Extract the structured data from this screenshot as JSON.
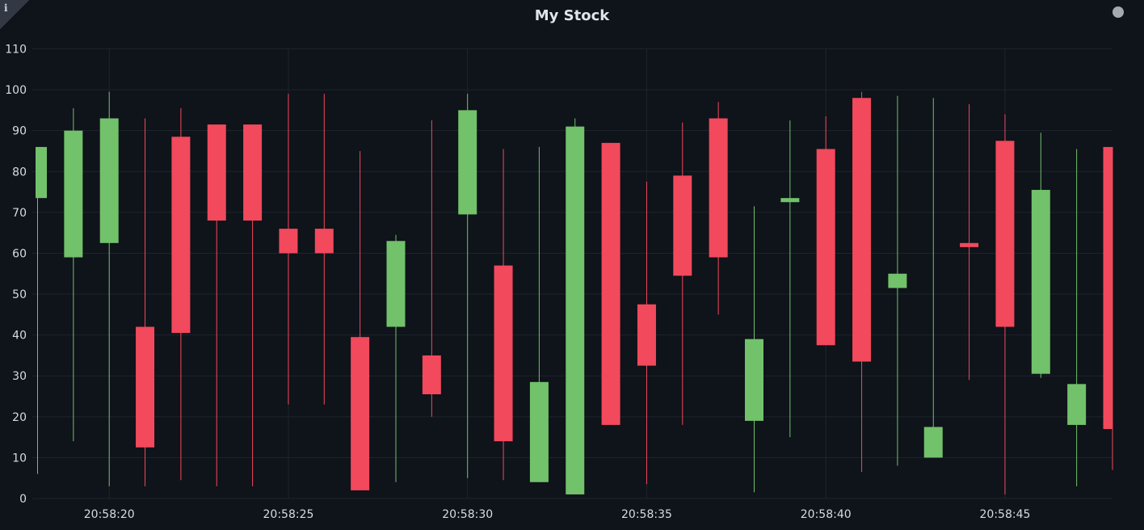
{
  "chart_data": {
    "type": "candlestick",
    "title": "My Stock",
    "ylim": [
      0,
      110
    ],
    "y_ticks": [
      0,
      10,
      20,
      30,
      40,
      50,
      60,
      70,
      80,
      90,
      100,
      110
    ],
    "x_ticks": [
      "20:58:20",
      "20:58:25",
      "20:58:30",
      "20:58:35",
      "20:58:40",
      "20:58:45"
    ],
    "grid": true,
    "colors": {
      "up": "#72c16b",
      "down": "#f2495c",
      "grid": "#1f242c",
      "background": "#0f131a"
    },
    "candles": [
      {
        "time": "20:58:18",
        "open": 73.5,
        "high": 86,
        "low": 6,
        "close": 86
      },
      {
        "time": "20:58:19",
        "open": 59,
        "high": 95.5,
        "low": 14,
        "close": 90
      },
      {
        "time": "20:58:20",
        "open": 62.5,
        "high": 99.5,
        "low": 3,
        "close": 93
      },
      {
        "time": "20:58:21",
        "open": 42,
        "high": 93,
        "low": 3,
        "close": 12.5
      },
      {
        "time": "20:58:22",
        "open": 88.5,
        "high": 95.5,
        "low": 4.5,
        "close": 40.5
      },
      {
        "time": "20:58:23",
        "open": 91.5,
        "high": 91.5,
        "low": 3,
        "close": 68
      },
      {
        "time": "20:58:24",
        "open": 91.5,
        "high": 91.5,
        "low": 3,
        "close": 68
      },
      {
        "time": "20:58:25",
        "open": 66,
        "high": 99,
        "low": 23,
        "close": 60
      },
      {
        "time": "20:58:26",
        "open": 66,
        "high": 99,
        "low": 23,
        "close": 60
      },
      {
        "time": "20:58:27",
        "open": 39.5,
        "high": 85,
        "low": 2,
        "close": 2
      },
      {
        "time": "20:58:28",
        "open": 42,
        "high": 64.5,
        "low": 4,
        "close": 63
      },
      {
        "time": "20:58:29",
        "open": 35,
        "high": 92.5,
        "low": 20,
        "close": 25.5
      },
      {
        "time": "20:58:30",
        "open": 69.5,
        "high": 99,
        "low": 5,
        "close": 95
      },
      {
        "time": "20:58:31",
        "open": 57,
        "high": 85.5,
        "low": 4.5,
        "close": 14
      },
      {
        "time": "20:58:32",
        "open": 4,
        "high": 86,
        "low": 4,
        "close": 28.5
      },
      {
        "time": "20:58:33",
        "open": 1,
        "high": 93,
        "low": 1,
        "close": 91
      },
      {
        "time": "20:58:34",
        "open": 87,
        "high": 87,
        "low": 18,
        "close": 18
      },
      {
        "time": "20:58:35",
        "open": 47.5,
        "high": 77.5,
        "low": 3.5,
        "close": 32.5
      },
      {
        "time": "20:58:36",
        "open": 79,
        "high": 92,
        "low": 18,
        "close": 54.5
      },
      {
        "time": "20:58:37",
        "open": 93,
        "high": 97,
        "low": 45,
        "close": 59
      },
      {
        "time": "20:58:38",
        "open": 19,
        "high": 71.5,
        "low": 1.5,
        "close": 39
      },
      {
        "time": "20:58:39",
        "open": 72.5,
        "high": 92.5,
        "low": 15,
        "close": 73.5
      },
      {
        "time": "20:58:40",
        "open": 85.5,
        "high": 93.5,
        "low": 38,
        "close": 37.5
      },
      {
        "time": "20:58:41",
        "open": 98,
        "high": 99.5,
        "low": 6.5,
        "close": 33.5
      },
      {
        "time": "20:58:42",
        "open": 51.5,
        "high": 98.5,
        "low": 8,
        "close": 55
      },
      {
        "time": "20:58:43",
        "open": 10,
        "high": 98,
        "low": 10,
        "close": 17.5
      },
      {
        "time": "20:58:44",
        "open": 62.5,
        "high": 96.5,
        "low": 29,
        "close": 61.5
      },
      {
        "time": "20:58:45",
        "open": 87.5,
        "high": 94,
        "low": 1,
        "close": 42
      },
      {
        "time": "20:58:46",
        "open": 30.5,
        "high": 89.5,
        "low": 29.5,
        "close": 75.5
      },
      {
        "time": "20:58:47",
        "open": 18,
        "high": 85.5,
        "low": 3,
        "close": 28
      },
      {
        "time": "20:58:48",
        "open": 86,
        "high": 86,
        "low": 7,
        "close": 17
      }
    ]
  },
  "icons": {
    "info": "i",
    "info_name": "info-icon",
    "status_name": "status-dot-icon"
  }
}
